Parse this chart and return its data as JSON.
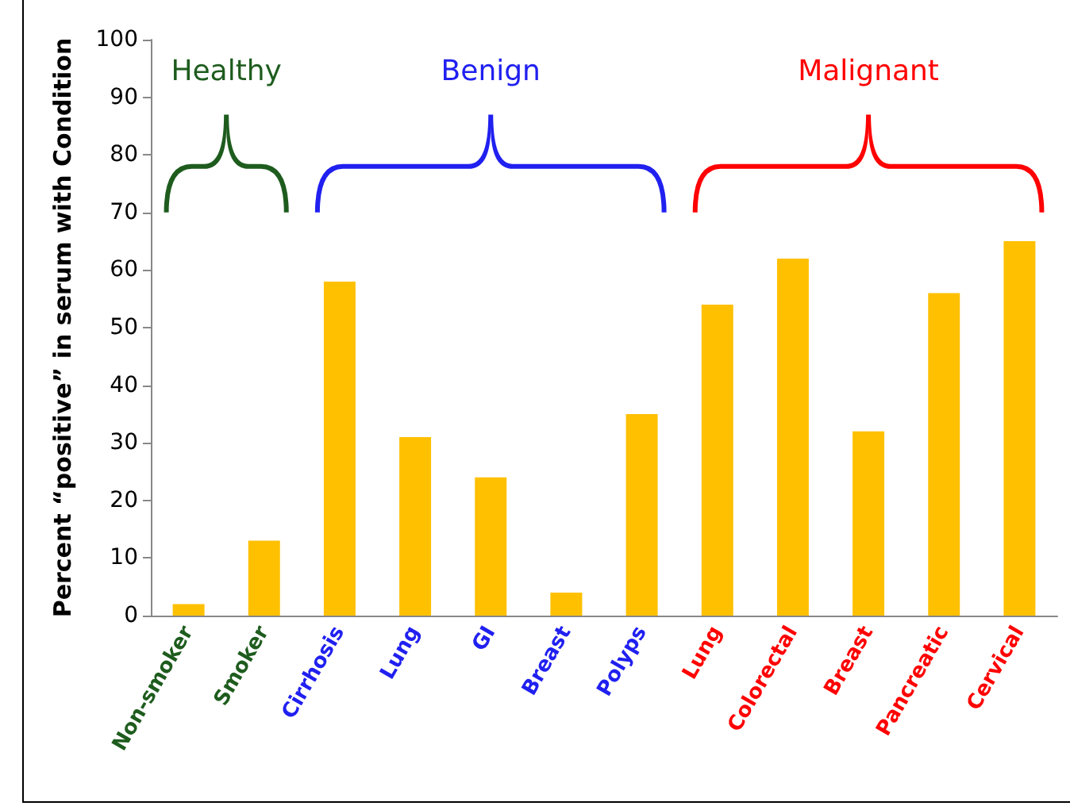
{
  "chart_data": {
    "type": "bar",
    "ylabel": "Percent “positive” in serum with Condition",
    "categories": [
      "Non-smoker",
      "Smoker",
      "Cirrhosis",
      "Lung",
      "GI",
      "Breast",
      "Polyps",
      "Lung",
      "Colorectal",
      "Breast",
      "Pancreatic",
      "Cervical"
    ],
    "values": [
      2,
      13,
      58,
      31,
      24,
      4,
      35,
      54,
      62,
      32,
      56,
      65
    ],
    "color": "#ffc000",
    "ylim": [
      0,
      100
    ],
    "yticks": [
      0,
      10,
      20,
      30,
      40,
      50,
      60,
      70,
      80,
      90,
      100
    ],
    "grid": false,
    "annotations": [
      "Healthy",
      "Benign",
      "Malignant"
    ]
  }
}
